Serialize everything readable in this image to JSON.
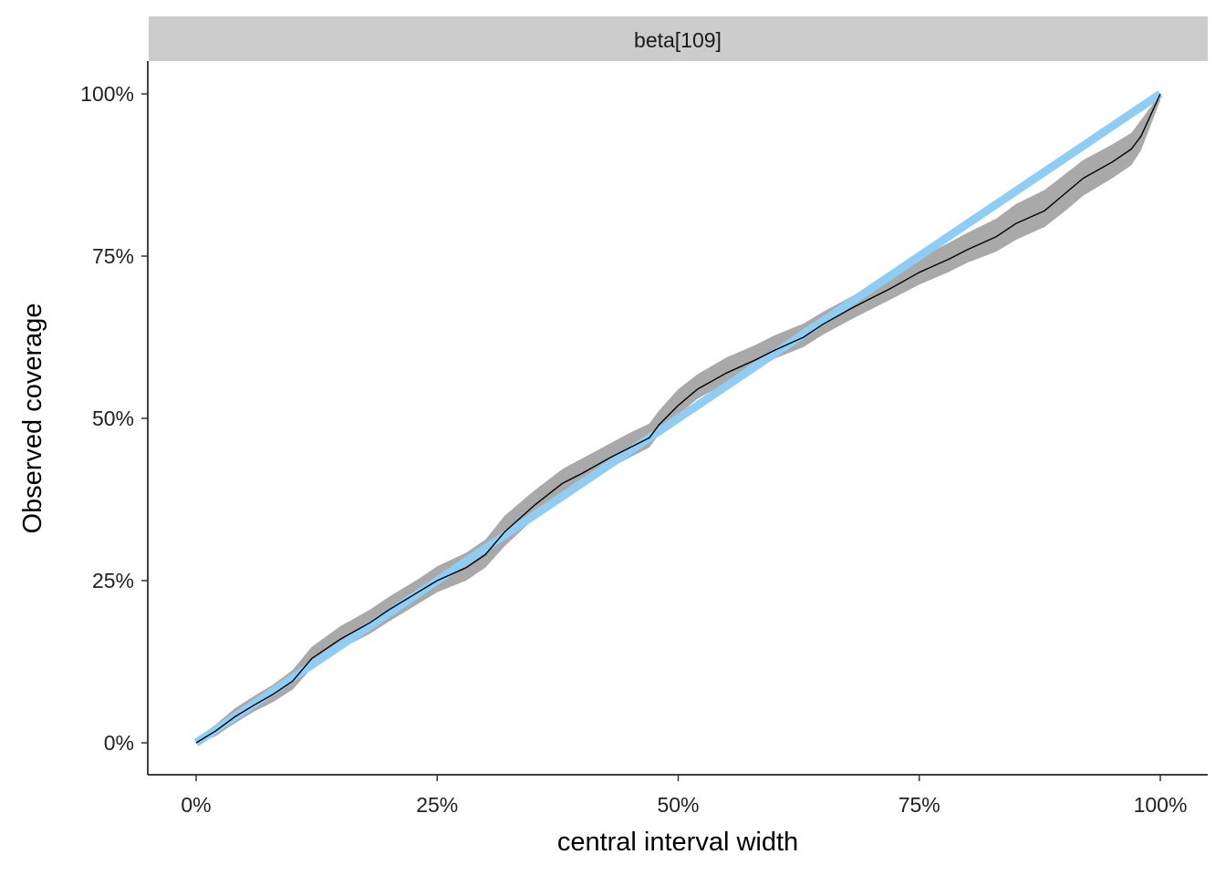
{
  "chart_data": {
    "type": "line",
    "facet_label": "beta[109]",
    "xlabel": "central interval width",
    "ylabel": "Observed coverage",
    "xlim": [
      0,
      1
    ],
    "ylim": [
      0,
      1
    ],
    "x_ticks": [
      {
        "value": 0,
        "label": "0%"
      },
      {
        "value": 0.25,
        "label": "25%"
      },
      {
        "value": 0.5,
        "label": "50%"
      },
      {
        "value": 0.75,
        "label": "75%"
      },
      {
        "value": 1,
        "label": "100%"
      }
    ],
    "y_ticks": [
      {
        "value": 0,
        "label": "0%"
      },
      {
        "value": 0.25,
        "label": "25%"
      },
      {
        "value": 0.5,
        "label": "50%"
      },
      {
        "value": 0.75,
        "label": "75%"
      },
      {
        "value": 1,
        "label": "100%"
      }
    ],
    "grid": false,
    "colors": {
      "band": "#a9a9a9",
      "observed_line": "#000000",
      "reference_line": "#8fcdf4",
      "strip": "#cccccc"
    },
    "series": [
      {
        "role": "reference",
        "x": [
          0,
          1
        ],
        "y": [
          0,
          1
        ]
      },
      {
        "role": "observed",
        "x": [
          0,
          0.02,
          0.04,
          0.06,
          0.08,
          0.1,
          0.12,
          0.15,
          0.18,
          0.2,
          0.23,
          0.25,
          0.28,
          0.3,
          0.32,
          0.35,
          0.38,
          0.4,
          0.43,
          0.45,
          0.47,
          0.48,
          0.5,
          0.52,
          0.55,
          0.58,
          0.6,
          0.63,
          0.65,
          0.68,
          0.7,
          0.72,
          0.75,
          0.78,
          0.8,
          0.83,
          0.85,
          0.88,
          0.9,
          0.92,
          0.95,
          0.97,
          0.98,
          1.0
        ],
        "y": [
          0,
          0.018,
          0.04,
          0.058,
          0.075,
          0.095,
          0.13,
          0.16,
          0.185,
          0.205,
          0.232,
          0.25,
          0.27,
          0.29,
          0.325,
          0.365,
          0.4,
          0.415,
          0.44,
          0.455,
          0.47,
          0.49,
          0.52,
          0.545,
          0.57,
          0.59,
          0.605,
          0.625,
          0.645,
          0.67,
          0.685,
          0.7,
          0.725,
          0.745,
          0.76,
          0.78,
          0.8,
          0.82,
          0.845,
          0.87,
          0.895,
          0.915,
          0.935,
          1.0
        ],
        "lower": [
          0,
          0.01,
          0.03,
          0.048,
          0.063,
          0.082,
          0.115,
          0.145,
          0.168,
          0.187,
          0.214,
          0.232,
          0.25,
          0.27,
          0.303,
          0.345,
          0.383,
          0.397,
          0.424,
          0.44,
          0.455,
          0.475,
          0.506,
          0.53,
          0.555,
          0.575,
          0.592,
          0.61,
          0.629,
          0.653,
          0.668,
          0.683,
          0.706,
          0.725,
          0.74,
          0.757,
          0.775,
          0.795,
          0.818,
          0.843,
          0.87,
          0.89,
          0.913,
          0.99
        ],
        "upper": [
          0.005,
          0.028,
          0.053,
          0.072,
          0.09,
          0.112,
          0.148,
          0.18,
          0.205,
          0.225,
          0.252,
          0.272,
          0.293,
          0.313,
          0.35,
          0.388,
          0.422,
          0.438,
          0.462,
          0.478,
          0.492,
          0.512,
          0.545,
          0.568,
          0.594,
          0.613,
          0.628,
          0.646,
          0.664,
          0.688,
          0.704,
          0.72,
          0.747,
          0.77,
          0.786,
          0.808,
          0.83,
          0.852,
          0.875,
          0.898,
          0.922,
          0.94,
          0.96,
          1.0
        ]
      }
    ]
  }
}
